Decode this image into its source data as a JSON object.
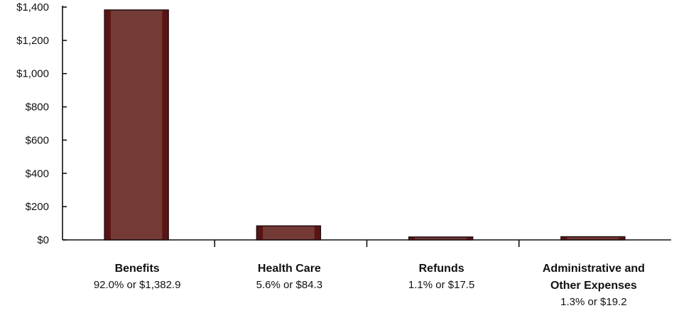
{
  "chart_data": {
    "type": "bar",
    "title": "",
    "xlabel": "",
    "ylabel": "",
    "ylim": [
      0,
      1400
    ],
    "yticks": [
      0,
      200,
      400,
      600,
      800,
      1000,
      1200,
      1400
    ],
    "ytick_labels": [
      "$0",
      "$200",
      "$400",
      "$600",
      "$800",
      "$1,000",
      "$1,200",
      "$1,400"
    ],
    "grid": false,
    "legend": "none",
    "bar_color": "#733a36",
    "bar_edge_color": "#5a1414",
    "categories": [
      {
        "name": [
          "Benefits"
        ],
        "detail": "92.0% or $1,382.9"
      },
      {
        "name": [
          "Health Care"
        ],
        "detail": "5.6% or $84.3"
      },
      {
        "name": [
          "Refunds"
        ],
        "detail": "1.1% or $17.5"
      },
      {
        "name": [
          "Administrative and",
          "Other Expenses"
        ],
        "detail": "1.3% or $19.2"
      }
    ],
    "values": [
      1382.9,
      84.3,
      17.5,
      19.2
    ]
  }
}
